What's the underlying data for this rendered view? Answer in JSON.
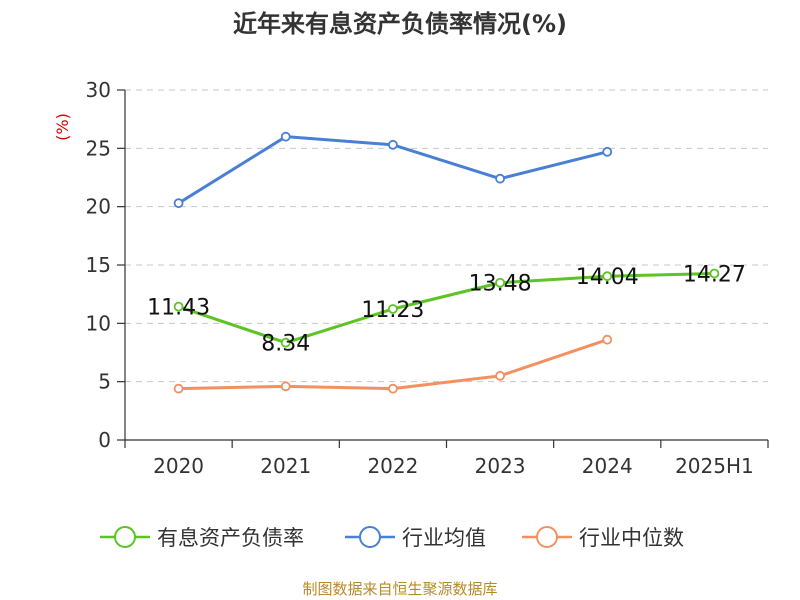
{
  "chart_data": {
    "type": "line",
    "title": "近年来有息资产负债率情况(%)",
    "ylabel": "(%)",
    "xlabel": "",
    "categories": [
      "2020",
      "2021",
      "2022",
      "2023",
      "2024",
      "2025H1"
    ],
    "ylim": [
      0,
      30
    ],
    "yticks": [
      0,
      5,
      10,
      15,
      20,
      25,
      30
    ],
    "grid": true,
    "legend_position": "bottom",
    "series": [
      {
        "name": "有息资产负债率",
        "color": "#5cc424",
        "values": [
          11.43,
          8.34,
          11.23,
          13.48,
          14.04,
          14.27
        ],
        "labels": [
          "11.43",
          "8.34",
          "11.23",
          "13.48",
          "14.04",
          "14.27"
        ]
      },
      {
        "name": "行业均值",
        "color": "#4a7fd6",
        "values": [
          20.3,
          26.0,
          25.3,
          22.4,
          24.7,
          null
        ]
      },
      {
        "name": "行业中位数",
        "color": "#f39060",
        "values": [
          4.4,
          4.6,
          4.4,
          5.5,
          8.6,
          null
        ]
      }
    ]
  },
  "source_text": "制图数据来自恒生聚源数据库"
}
